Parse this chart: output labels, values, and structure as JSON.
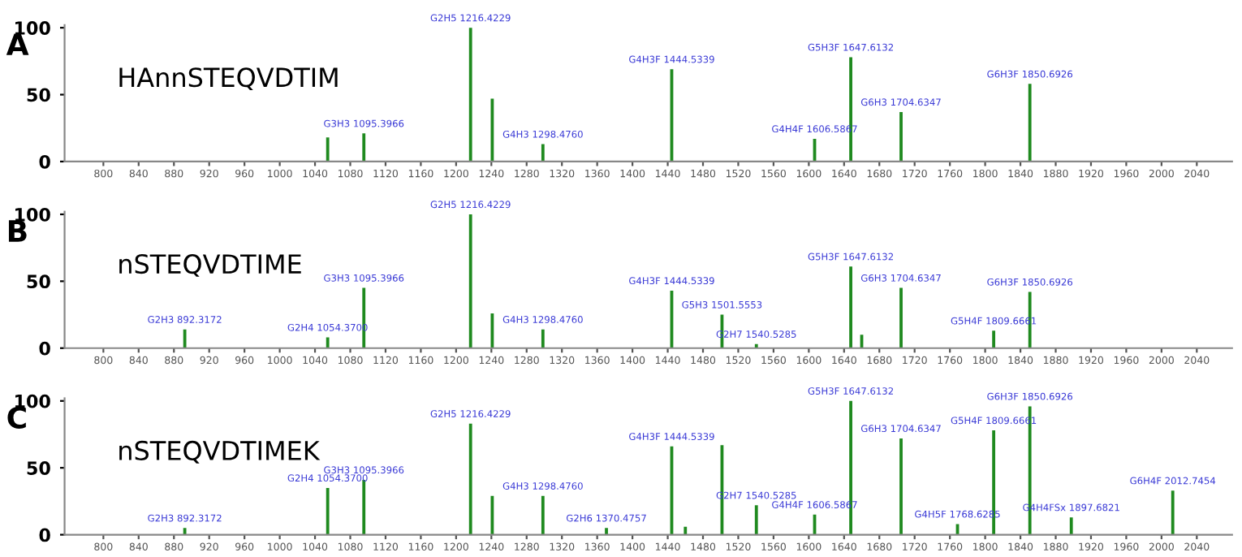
{
  "chart_data": [
    {
      "type": "bar",
      "title": "A",
      "annotations": [
        "HAnnSTEQVDTIM",
        {
          "text": "G3H3 1095.3966",
          "x": 1095.3966,
          "y": 21
        },
        {
          "text": "G2H5 1216.4229",
          "x": 1216.4229,
          "y": 100
        },
        {
          "text": "G4H3 1298.4760",
          "x": 1298.476,
          "y": 13
        },
        {
          "text": "G4H3F 1444.5339",
          "x": 1444.5339,
          "y": 69
        },
        {
          "text": "G4H4F 1606.5867",
          "x": 1606.5867,
          "y": 17
        },
        {
          "text": "G5H3F 1647.6132",
          "x": 1647.6132,
          "y": 78
        },
        {
          "text": "G6H3 1704.6347",
          "x": 1704.6347,
          "y": 37
        },
        {
          "text": "G6H3F 1850.6926",
          "x": 1850.6926,
          "y": 58
        }
      ],
      "x": [
        1054.37,
        1095.3966,
        1216.4229,
        1241,
        1298.476,
        1444.5339,
        1606.5867,
        1647.6132,
        1704.6347,
        1850.6926
      ],
      "values": [
        18,
        21,
        100,
        47,
        13,
        69,
        17,
        78,
        37,
        58
      ],
      "color": "#1f8a1f",
      "xlim": [
        756,
        2080
      ],
      "xticks": [
        800,
        840,
        880,
        920,
        960,
        1000,
        1040,
        1080,
        1120,
        1160,
        1200,
        1240,
        1280,
        1320,
        1360,
        1400,
        1440,
        1480,
        1520,
        1560,
        1600,
        1640,
        1680,
        1720,
        1760,
        1800,
        1840,
        1880,
        1920,
        1960,
        2000,
        2040
      ],
      "ylim": [
        0,
        102
      ],
      "yticks": [
        0,
        50,
        100
      ],
      "grid": false
    },
    {
      "type": "bar",
      "title": "B",
      "annotations": [
        "nSTEQVDTIME",
        {
          "text": "G2H3 892.3172",
          "x": 892.3172,
          "y": 14
        },
        {
          "text": "G2H4 1054.3700",
          "x": 1054.37,
          "y": 8
        },
        {
          "text": "G3H3 1095.3966",
          "x": 1095.3966,
          "y": 45
        },
        {
          "text": "G2H5 1216.4229",
          "x": 1216.4229,
          "y": 100
        },
        {
          "text": "G4H3 1298.4760",
          "x": 1298.476,
          "y": 14
        },
        {
          "text": "G4H3F 1444.5339",
          "x": 1444.5339,
          "y": 43
        },
        {
          "text": "G5H3 1501.5553",
          "x": 1501.5553,
          "y": 25
        },
        {
          "text": "G2H7 1540.5285",
          "x": 1540.5285,
          "y": 3
        },
        {
          "text": "G5H3F 1647.6132",
          "x": 1647.6132,
          "y": 61
        },
        {
          "text": "G6H3 1704.6347",
          "x": 1704.6347,
          "y": 45
        },
        {
          "text": "G5H4F 1809.6661",
          "x": 1809.6661,
          "y": 13
        },
        {
          "text": "G6H3F 1850.6926",
          "x": 1850.6926,
          "y": 42
        }
      ],
      "x": [
        892.3172,
        1054.37,
        1095.3966,
        1216.4229,
        1241,
        1298.476,
        1444.5339,
        1501.5553,
        1540.5285,
        1647.6132,
        1660,
        1704.6347,
        1809.6661,
        1850.6926
      ],
      "values": [
        14,
        8,
        45,
        100,
        26,
        14,
        43,
        25,
        3,
        61,
        10,
        45,
        13,
        42
      ],
      "color": "#1f8a1f",
      "xlim": [
        756,
        2080
      ],
      "xticks": [
        800,
        840,
        880,
        920,
        960,
        1000,
        1040,
        1080,
        1120,
        1160,
        1200,
        1240,
        1280,
        1320,
        1360,
        1400,
        1440,
        1480,
        1520,
        1560,
        1600,
        1640,
        1680,
        1720,
        1760,
        1800,
        1840,
        1880,
        1920,
        1960,
        2000,
        2040
      ],
      "ylim": [
        0,
        102
      ],
      "yticks": [
        0,
        50,
        100
      ],
      "grid": false
    },
    {
      "type": "bar",
      "title": "C",
      "annotations": [
        "nSTEQVDTIMEK",
        {
          "text": "G2H3 892.3172",
          "x": 892.3172,
          "y": 5
        },
        {
          "text": "G2H4 1054.3700",
          "x": 1054.37,
          "y": 35
        },
        {
          "text": "G3H3 1095.3966",
          "x": 1095.3966,
          "y": 41
        },
        {
          "text": "G2H5 1216.4229",
          "x": 1216.4229,
          "y": 83
        },
        {
          "text": "G4H3 1298.4760",
          "x": 1298.476,
          "y": 29
        },
        {
          "text": "G2H6 1370.4757",
          "x": 1370.4757,
          "y": 5
        },
        {
          "text": "G4H3F 1444.5339",
          "x": 1444.5339,
          "y": 66
        },
        {
          "text": "G2H7 1540.5285",
          "x": 1540.5285,
          "y": 22
        },
        {
          "text": "G4H4F 1606.5867",
          "x": 1606.5867,
          "y": 15
        },
        {
          "text": "G5H3F 1647.6132",
          "x": 1647.6132,
          "y": 100
        },
        {
          "text": "G6H3 1704.6347",
          "x": 1704.6347,
          "y": 72
        },
        {
          "text": "G4H5F 1768.6285",
          "x": 1768.6285,
          "y": 8
        },
        {
          "text": "G5H4F 1809.6661",
          "x": 1809.6661,
          "y": 78
        },
        {
          "text": "G6H3F 1850.6926",
          "x": 1850.6926,
          "y": 96
        },
        {
          "text": "G4H4FSx 1897.6821",
          "x": 1897.6821,
          "y": 13
        },
        {
          "text": "G6H4F 2012.7454",
          "x": 2012.7454,
          "y": 33
        }
      ],
      "x": [
        892.3172,
        1054.37,
        1095.3966,
        1216.4229,
        1241,
        1298.476,
        1370.4757,
        1444.5339,
        1460,
        1501.5553,
        1540.5285,
        1606.5867,
        1647.6132,
        1704.6347,
        1768.6285,
        1809.6661,
        1850.6926,
        1897.6821,
        2012.7454
      ],
      "values": [
        5,
        35,
        41,
        83,
        29,
        29,
        5,
        66,
        6,
        67,
        22,
        15,
        100,
        72,
        8,
        78,
        96,
        13,
        33
      ],
      "color": "#1f8a1f",
      "xlim": [
        756,
        2080
      ],
      "xticks": [
        800,
        840,
        880,
        920,
        960,
        1000,
        1040,
        1080,
        1120,
        1160,
        1200,
        1240,
        1280,
        1320,
        1360,
        1400,
        1440,
        1480,
        1520,
        1560,
        1600,
        1640,
        1680,
        1720,
        1760,
        1800,
        1840,
        1880,
        1920,
        1960,
        2000,
        2040
      ],
      "ylim": [
        0,
        102
      ],
      "yticks": [
        0,
        50,
        100
      ],
      "grid": false
    }
  ]
}
